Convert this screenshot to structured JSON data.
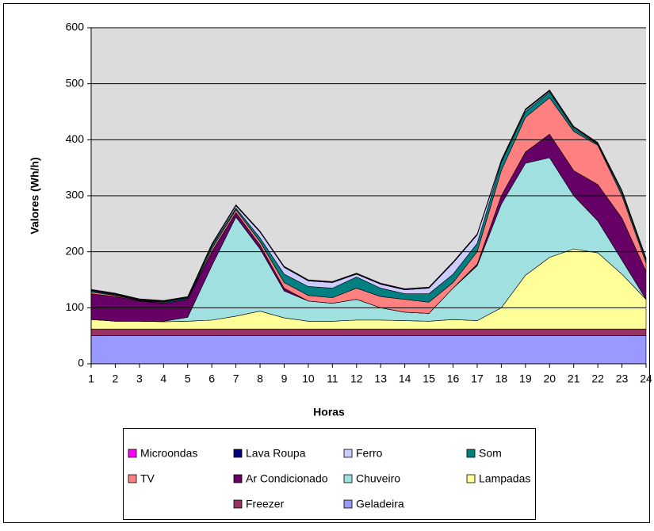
{
  "chart_data": {
    "type": "stacked_area",
    "x_label": "Horas",
    "y_label": "Valores (Wh/h)",
    "categories": [
      "1",
      "2",
      "3",
      "4",
      "5",
      "6",
      "7",
      "8",
      "9",
      "10",
      "11",
      "12",
      "13",
      "14",
      "15",
      "16",
      "17",
      "18",
      "19",
      "20",
      "21",
      "22",
      "23",
      "24"
    ],
    "ylim": [
      0,
      600
    ],
    "yticks": [
      0,
      100,
      200,
      300,
      400,
      500,
      600
    ],
    "grid": true,
    "series": [
      {
        "name": "Microondas",
        "color": "#ff00ff",
        "values": [
          1,
          1,
          1,
          1,
          1,
          1,
          1,
          1,
          1,
          1,
          1,
          1,
          1,
          1,
          1,
          1,
          1,
          1,
          1,
          1,
          1,
          1,
          1,
          1
        ]
      },
      {
        "name": "Lava Roupa",
        "color": "#000080",
        "values": [
          1,
          1,
          1,
          1,
          1,
          1,
          1,
          1,
          1,
          1,
          1,
          1,
          1,
          1,
          1,
          1,
          1,
          1,
          1,
          1,
          1,
          1,
          1,
          1
        ]
      },
      {
        "name": "Ferro",
        "color": "#ccccff",
        "values": [
          1,
          1,
          1,
          1,
          1,
          2,
          4,
          10,
          12,
          10,
          10,
          5,
          7,
          7,
          10,
          20,
          15,
          2,
          3,
          2,
          2,
          1,
          3,
          2
        ]
      },
      {
        "name": "Som",
        "color": "#008080",
        "values": [
          2,
          1,
          0,
          2,
          2,
          5,
          3,
          7,
          15,
          16,
          17,
          20,
          15,
          10,
          15,
          15,
          15,
          15,
          10,
          10,
          5,
          2,
          5,
          5
        ]
      },
      {
        "name": "TV",
        "color": "#ff8080",
        "values": [
          3,
          2,
          1,
          0,
          0,
          5,
          5,
          6,
          10,
          10,
          10,
          20,
          20,
          23,
          20,
          10,
          22,
          45,
          62,
          65,
          70,
          70,
          40,
          15
        ]
      },
      {
        "name": "Ar Condicionado",
        "color": "#660066",
        "values": [
          46,
          44,
          36,
          32,
          32,
          25,
          8,
          7,
          5,
          0,
          0,
          0,
          0,
          0,
          0,
          0,
          3,
          15,
          20,
          42,
          45,
          65,
          75,
          50
        ]
      },
      {
        "name": "Chuveiro",
        "color": "#a0e0e0",
        "values": [
          0,
          0,
          0,
          1,
          7,
          97,
          177,
          111,
          48,
          36,
          32,
          37,
          22,
          15,
          14,
          56,
          98,
          185,
          200,
          178,
          95,
          57,
          25,
          0
        ]
      },
      {
        "name": "Lampadas",
        "color": "#ffff99",
        "values": [
          17,
          14,
          14,
          13,
          14,
          16,
          23,
          32,
          20,
          14,
          14,
          16,
          16,
          15,
          14,
          17,
          15,
          38,
          96,
          128,
          143,
          136,
          98,
          53
        ]
      },
      {
        "name": "Freezer",
        "color": "#993366",
        "values": [
          12,
          12,
          12,
          12,
          12,
          12,
          12,
          12,
          12,
          12,
          12,
          12,
          12,
          12,
          12,
          12,
          12,
          12,
          12,
          12,
          12,
          12,
          12,
          12
        ]
      },
      {
        "name": "Geladeira",
        "color": "#9999ff",
        "values": [
          50,
          50,
          50,
          50,
          50,
          50,
          50,
          50,
          50,
          50,
          50,
          50,
          50,
          50,
          50,
          50,
          50,
          50,
          50,
          50,
          50,
          50,
          50,
          50
        ]
      }
    ]
  }
}
